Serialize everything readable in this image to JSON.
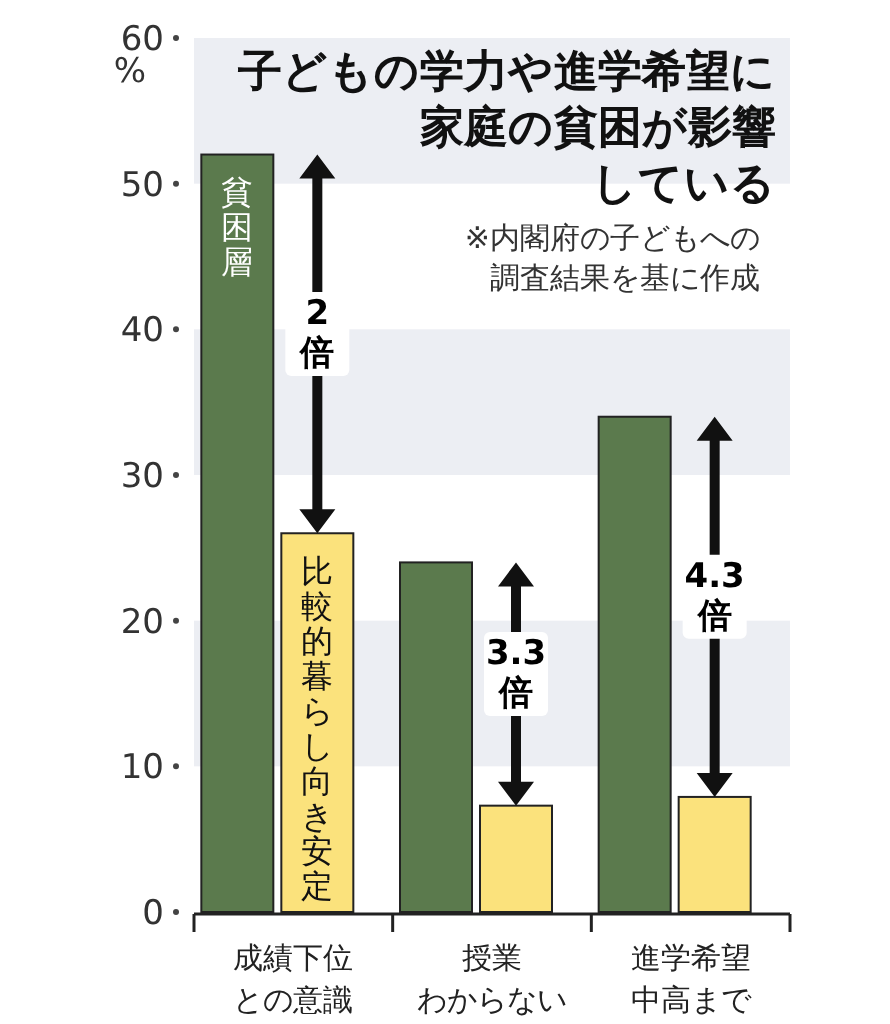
{
  "chart_data": {
    "type": "bar",
    "title": "子どもの学力や進学希望に家庭の貧困が影響している",
    "ylabel": "%",
    "categories": [
      "成績下位との意識",
      "授業わからない",
      "進学希望中高まで"
    ],
    "series": [
      {
        "name": "貧困層",
        "color": "#5b7a4d",
        "values": [
          52,
          24,
          34
        ]
      },
      {
        "name": "比較的暮らし向き安定",
        "color": "#fbe27c",
        "values": [
          26,
          7.3,
          7.9
        ]
      }
    ],
    "ylim": [
      0,
      60
    ],
    "yticks": [
      0,
      10,
      20,
      30,
      40,
      50,
      60
    ],
    "bands": [
      {
        "axis": "y",
        "from": 10,
        "to": 20,
        "color": "#eceef3"
      },
      {
        "axis": "y",
        "from": 30,
        "to": 40,
        "color": "#eceef3"
      },
      {
        "axis": "y",
        "from": 50,
        "to": 60,
        "color": "#eceef3"
      }
    ],
    "annotations": [
      "2倍",
      "3.3倍",
      "4.3倍",
      "※内閣府の子どもへの調査結果を基に作成"
    ],
    "grid": false
  }
}
